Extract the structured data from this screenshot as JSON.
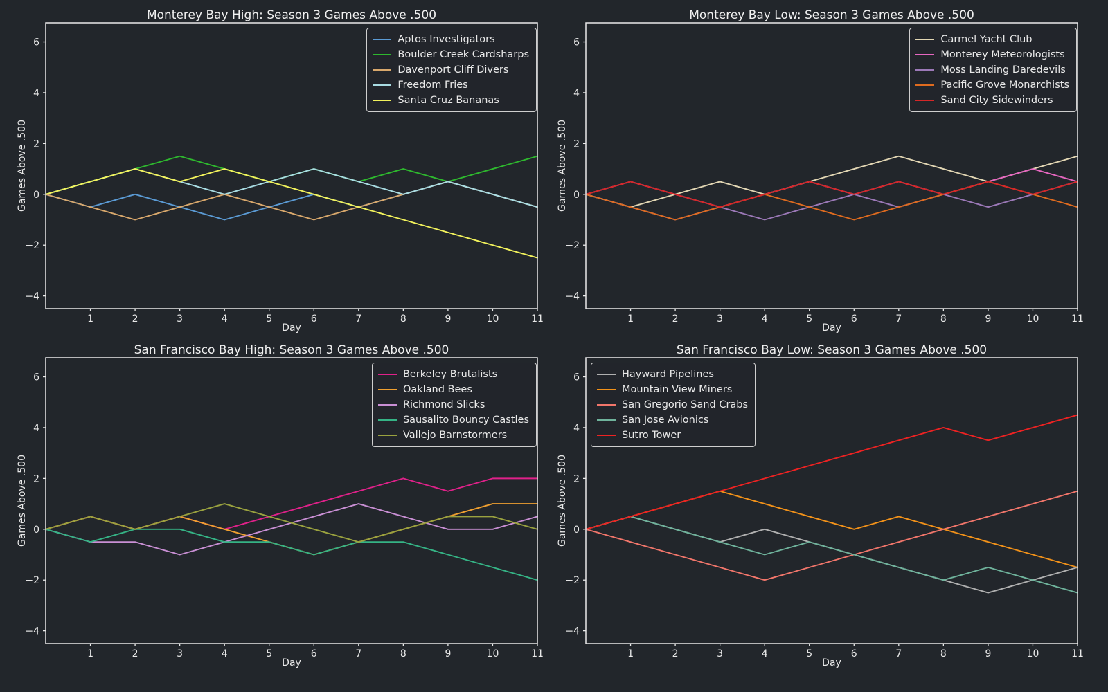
{
  "figure": {
    "background": "#22262b",
    "text_color": "#e9e9e9",
    "xlabel": "Day",
    "ylabel": "Games Above .500",
    "xticks": [
      1,
      2,
      3,
      4,
      5,
      6,
      7,
      8,
      9,
      10,
      11
    ],
    "yticks": [
      -4,
      -2,
      0,
      2,
      4,
      6
    ],
    "ylim": [
      -4.5,
      6.75
    ],
    "xlim": [
      0,
      11
    ]
  },
  "chart_data": [
    {
      "type": "line",
      "title": "Monterey Bay High: Season 3 Games Above .500",
      "xlabel": "Day",
      "ylabel": "Games Above .500",
      "legend_position": "upper right",
      "x": [
        0,
        1,
        2,
        3,
        4,
        5,
        6,
        7,
        8,
        9,
        10,
        11
      ],
      "series": [
        {
          "name": "Aptos Investigators",
          "color": "#5b9bd5",
          "values": [
            0,
            -0.5,
            0,
            -0.5,
            -1,
            -0.5,
            0,
            -0.5,
            0,
            0.5,
            0,
            -0.5
          ]
        },
        {
          "name": "Boulder Creek Cardsharps",
          "color": "#2eb82e",
          "values": [
            0,
            0.5,
            1,
            1.5,
            1,
            0.5,
            1,
            0.5,
            1,
            0.5,
            1,
            1.5
          ]
        },
        {
          "name": "Davenport Cliff Divers",
          "color": "#d9a86c",
          "values": [
            0,
            -0.5,
            -1,
            -0.5,
            0,
            -0.5,
            -1,
            -0.5,
            0,
            0.5,
            0,
            -0.5
          ]
        },
        {
          "name": "Freedom Fries",
          "color": "#a9dce3",
          "values": [
            0,
            0.5,
            1,
            0.5,
            0,
            0.5,
            1,
            0.5,
            0,
            0.5,
            0,
            -0.5
          ]
        },
        {
          "name": "Santa Cruz Bananas",
          "color": "#f2f25c",
          "values": [
            0,
            0.5,
            1,
            0.5,
            1,
            0.5,
            0,
            -0.5,
            -1,
            -1.5,
            -2,
            -2.5
          ]
        }
      ]
    },
    {
      "type": "line",
      "title": "Monterey Bay Low: Season 3 Games Above .500",
      "xlabel": "Day",
      "ylabel": "Games Above .500",
      "legend_position": "upper right",
      "x": [
        0,
        1,
        2,
        3,
        4,
        5,
        6,
        7,
        8,
        9,
        10,
        11
      ],
      "series": [
        {
          "name": "Carmel Yacht Club",
          "color": "#e3d7b4",
          "values": [
            0,
            -0.5,
            0,
            0.5,
            0,
            0.5,
            1,
            1.5,
            1,
            0.5,
            1,
            1.5
          ]
        },
        {
          "name": "Monterey Meteorologists",
          "color": "#e667c0",
          "values": [
            0,
            0.5,
            0,
            -0.5,
            0,
            0.5,
            0,
            0.5,
            0,
            0.5,
            1,
            0.5
          ]
        },
        {
          "name": "Moss Landing Daredevils",
          "color": "#9c79b8",
          "values": [
            0,
            -0.5,
            -1,
            -0.5,
            -1,
            -0.5,
            0,
            -0.5,
            0,
            -0.5,
            0,
            0.5
          ]
        },
        {
          "name": "Pacific Grove Monarchists",
          "color": "#df6b1f",
          "values": [
            0,
            -0.5,
            -1,
            -0.5,
            0,
            -0.5,
            -1,
            -0.5,
            0,
            0.5,
            0,
            -0.5
          ]
        },
        {
          "name": "Sand City Sidewinders",
          "color": "#d62728",
          "values": [
            0,
            0.5,
            0,
            -0.5,
            0,
            0.5,
            0,
            0.5,
            0,
            0.5,
            0,
            0.5
          ]
        }
      ]
    },
    {
      "type": "line",
      "title": "San Francisco Bay High: Season 3 Games Above .500",
      "xlabel": "Day",
      "ylabel": "Games Above .500",
      "legend_position": "upper right",
      "x": [
        0,
        1,
        2,
        3,
        4,
        5,
        6,
        7,
        8,
        9,
        10,
        11
      ],
      "series": [
        {
          "name": "Berkeley Brutalists",
          "color": "#e0218a",
          "values": [
            0,
            0.5,
            0,
            0.5,
            0,
            0.5,
            1,
            1.5,
            2,
            1.5,
            2,
            2
          ]
        },
        {
          "name": "Oakland Bees",
          "color": "#f0a030",
          "values": [
            0,
            0.5,
            0,
            0.5,
            0,
            -0.5,
            -1,
            -0.5,
            0,
            0.5,
            1,
            1
          ]
        },
        {
          "name": "Richmond Slicks",
          "color": "#c98fd4",
          "values": [
            0,
            -0.5,
            -0.5,
            -1,
            -0.5,
            0,
            0.5,
            1,
            0.5,
            0,
            0,
            0.5
          ]
        },
        {
          "name": "Sausalito Bouncy Castles",
          "color": "#35b385",
          "values": [
            0,
            -0.5,
            0,
            0,
            -0.5,
            -0.5,
            -1,
            -0.5,
            -0.5,
            -1,
            -1.5,
            -2
          ]
        },
        {
          "name": "Vallejo Barnstormers",
          "color": "#9aa23f",
          "values": [
            0,
            0.5,
            0,
            0.5,
            1,
            0.5,
            0,
            -0.5,
            0,
            0.5,
            0.5,
            0
          ]
        }
      ]
    },
    {
      "type": "line",
      "title": "San Francisco Bay Low: Season 3 Games Above .500",
      "xlabel": "Day",
      "ylabel": "Games Above .500",
      "legend_position": "upper left",
      "x": [
        0,
        1,
        2,
        3,
        4,
        5,
        6,
        7,
        8,
        9,
        10,
        11
      ],
      "series": [
        {
          "name": "Hayward Pipelines",
          "color": "#b0b0b0",
          "values": [
            0,
            0.5,
            0,
            -0.5,
            0,
            -0.5,
            -1,
            -1.5,
            -2,
            -2.5,
            -2,
            -1.5
          ]
        },
        {
          "name": "Mountain View Miners",
          "color": "#f39219",
          "values": [
            0,
            0.5,
            1,
            1.5,
            1,
            0.5,
            0,
            0.5,
            0,
            -0.5,
            -1,
            -1.5
          ]
        },
        {
          "name": "San Gregorio Sand Crabs",
          "color": "#f2766b",
          "values": [
            0,
            -0.5,
            -1,
            -1.5,
            -2,
            -1.5,
            -1,
            -0.5,
            0,
            0.5,
            1,
            1.5
          ]
        },
        {
          "name": "San Jose Avionics",
          "color": "#6fb39c",
          "values": [
            0,
            0.5,
            0,
            -0.5,
            -1,
            -0.5,
            -1,
            -1.5,
            -2,
            -1.5,
            -2,
            -2.5
          ]
        },
        {
          "name": "Sutro Tower",
          "color": "#ee2222",
          "values": [
            0,
            0.5,
            1,
            1.5,
            2,
            2.5,
            3,
            3.5,
            4,
            3.5,
            4,
            4.5
          ]
        }
      ]
    }
  ]
}
